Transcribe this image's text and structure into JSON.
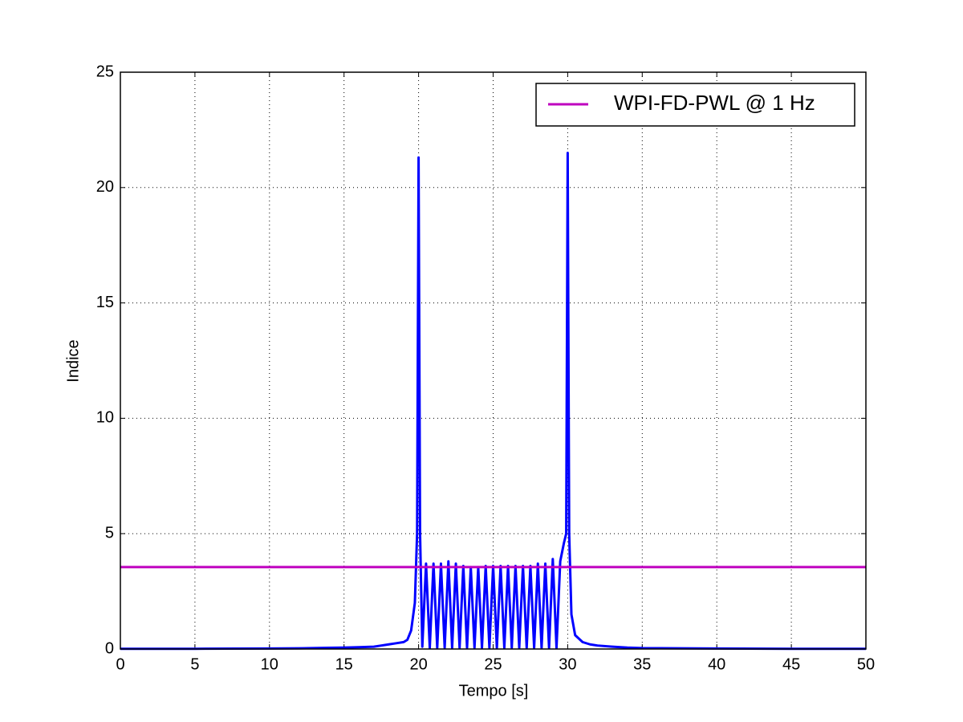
{
  "chart_data": {
    "type": "line",
    "xlabel": "Tempo [s]",
    "ylabel": "Indice",
    "xlim": [
      0,
      50
    ],
    "ylim": [
      0,
      25
    ],
    "xticks": [
      0,
      5,
      10,
      15,
      20,
      25,
      30,
      35,
      40,
      45,
      50
    ],
    "yticks": [
      0,
      5,
      10,
      15,
      20,
      25
    ],
    "grid": true,
    "legend": "upper right",
    "series": [
      {
        "color": "#0000ff",
        "x": [
          0,
          5,
          10,
          12,
          14,
          15,
          16,
          17,
          17.5,
          18,
          18.5,
          19,
          19.25,
          19.5,
          19.75,
          19.9,
          20,
          20.1,
          20.25,
          20.5,
          20.75,
          21,
          21.25,
          21.5,
          21.75,
          22,
          22.25,
          22.5,
          22.75,
          23,
          23.25,
          23.5,
          23.75,
          24,
          24.25,
          24.5,
          24.75,
          25,
          25.25,
          25.5,
          25.75,
          26,
          26.25,
          26.5,
          26.75,
          27,
          27.25,
          27.5,
          27.75,
          28,
          28.25,
          28.5,
          28.75,
          29,
          29.25,
          29.5,
          29.75,
          29.9,
          30,
          30.1,
          30.25,
          30.5,
          31,
          31.5,
          32,
          33,
          34,
          35,
          40,
          45,
          50
        ],
        "values": [
          0.01,
          0.01,
          0.02,
          0.03,
          0.05,
          0.06,
          0.08,
          0.1,
          0.15,
          0.2,
          0.25,
          0.3,
          0.4,
          0.8,
          2.0,
          5.0,
          21.3,
          5.0,
          0.1,
          3.7,
          0.05,
          3.7,
          0.05,
          3.7,
          0.05,
          3.8,
          0.05,
          3.7,
          0.05,
          3.6,
          0.05,
          3.55,
          0.05,
          3.55,
          0.05,
          3.6,
          0.05,
          3.6,
          0.05,
          3.6,
          0.05,
          3.6,
          0.05,
          3.6,
          0.05,
          3.6,
          0.05,
          3.6,
          0.05,
          3.7,
          0.05,
          3.7,
          0.05,
          3.9,
          0.05,
          3.8,
          4.6,
          5.0,
          21.5,
          5.0,
          1.5,
          0.6,
          0.3,
          0.2,
          0.15,
          0.1,
          0.06,
          0.04,
          0.02,
          0.01,
          0.01
        ]
      },
      {
        "name": "WPI-FD-PWL @ 1 Hz",
        "color": "#bf00bf",
        "x": [
          0,
          50
        ],
        "values": [
          3.55,
          3.55
        ]
      }
    ]
  }
}
